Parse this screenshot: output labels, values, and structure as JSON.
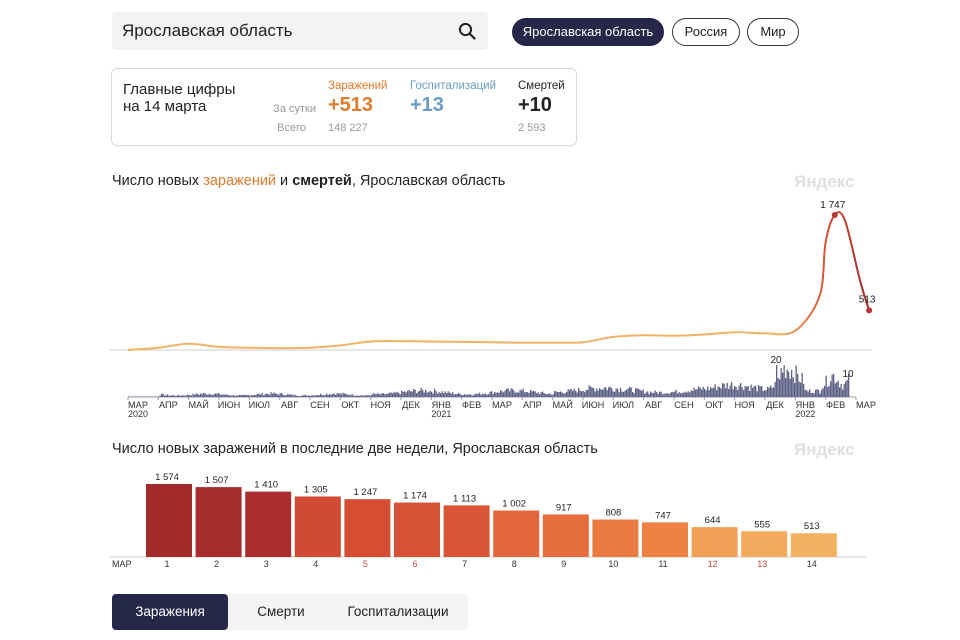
{
  "search": {
    "value": "Ярославская область"
  },
  "region_tabs": [
    "Ярославская область",
    "Россия",
    "Мир"
  ],
  "summary": {
    "title_line1": "Главные цифры",
    "title_line2": "на 14 марта",
    "row_daily": "За сутки",
    "row_total": "Всего",
    "columns": [
      {
        "label": "Заражений",
        "daily": "+513",
        "total": "148 227",
        "color": "#e07a2c"
      },
      {
        "label": "Госпитализаций",
        "daily": "+13",
        "total": "",
        "color": "#6a9bc3"
      },
      {
        "label": "Смертей",
        "daily": "+10",
        "total": "2 593",
        "color": "#222222"
      }
    ]
  },
  "chart1": {
    "title_part1": "Число новых ",
    "title_part2": "заражений",
    "title_part3": " и ",
    "title_part4": "смертей",
    "title_part5": ", Ярославская область",
    "watermark": "Яндекс",
    "months": [
      "МАР",
      "АПР",
      "МАЙ",
      "ИЮН",
      "ИЮЛ",
      "АВГ",
      "СЕН",
      "ОКТ",
      "НОЯ",
      "ДЕК",
      "ЯНВ",
      "ФЕВ",
      "МАР",
      "АПР",
      "МАЙ",
      "ИЮН",
      "ИЮЛ",
      "АВГ",
      "СЕН",
      "ОКТ",
      "НОЯ",
      "ДЕК",
      "ЯНВ",
      "ФЕВ",
      "МАР"
    ],
    "years": [
      {
        "label": "2020",
        "month_index": 0
      },
      {
        "label": "2021",
        "month_index": 10
      },
      {
        "label": "2022",
        "month_index": 22
      }
    ]
  },
  "chart2": {
    "title": "Число новых заражений в последние две недели, Ярославская область",
    "watermark": "Яндекс",
    "month_label": "МАР"
  },
  "bottom_tabs": [
    "Заражения",
    "Смерти",
    "Госпитализации"
  ],
  "chart_data": [
    {
      "type": "line",
      "series": [
        {
          "name": "Заражений",
          "color": "#f0b267",
          "points": [
            [
              "2020-03",
              0
            ],
            [
              "2020-04",
              30
            ],
            [
              "2020-05",
              80
            ],
            [
              "2020-06",
              40
            ],
            [
              "2020-07",
              30
            ],
            [
              "2020-08",
              25
            ],
            [
              "2020-09",
              30
            ],
            [
              "2020-10",
              60
            ],
            [
              "2020-11",
              110
            ],
            [
              "2020-12",
              115
            ],
            [
              "2021-01",
              110
            ],
            [
              "2021-02",
              105
            ],
            [
              "2021-03",
              100
            ],
            [
              "2021-04",
              95
            ],
            [
              "2021-05",
              95
            ],
            [
              "2021-06",
              100
            ],
            [
              "2021-07",
              170
            ],
            [
              "2021-08",
              190
            ],
            [
              "2021-09",
              185
            ],
            [
              "2021-10",
              200
            ],
            [
              "2021-11",
              230
            ],
            [
              "2021-12",
              215
            ],
            [
              "2022-01",
              250
            ],
            [
              "2022-01-25",
              700
            ],
            [
              "2022-02",
              1400
            ],
            [
              "2022-02-10",
              1747
            ],
            [
              "2022-02-20",
              1680
            ],
            [
              "2022-03-05",
              900
            ],
            [
              "2022-03-14",
              513
            ]
          ],
          "labels": [
            {
              "x": "2022-02-10",
              "text": "1 747"
            },
            {
              "x": "2022-03-14",
              "text": "513"
            }
          ]
        },
        {
          "name": "Смертей",
          "color": "#5b5f86",
          "labels": [
            {
              "x": "2022-01",
              "text": "20"
            },
            {
              "x": "2022-03-14",
              "text": "10"
            }
          ]
        }
      ]
    },
    {
      "type": "bar",
      "categories": [
        "1",
        "2",
        "3",
        "4",
        "5",
        "6",
        "7",
        "8",
        "9",
        "10",
        "11",
        "12",
        "13",
        "14"
      ],
      "values": [
        1574,
        1507,
        1410,
        1305,
        1247,
        1174,
        1113,
        1002,
        917,
        808,
        747,
        644,
        555,
        513
      ],
      "value_labels": [
        "1 574",
        "1 507",
        "1 410",
        "1 305",
        "1 247",
        "1 174",
        "1 113",
        "1 002",
        "917",
        "808",
        "747",
        "644",
        "555",
        "513"
      ],
      "weekend_indices": [
        4,
        5,
        11,
        12
      ],
      "colors": [
        "#a32a2b",
        "#a72c2c",
        "#aa2e2d",
        "#d14a33",
        "#d54e34",
        "#d65135",
        "#d95536",
        "#e3673c",
        "#e66e3e",
        "#e97a41",
        "#eb8244",
        "#f0a156",
        "#f2aa5c",
        "#f3b162"
      ]
    }
  ]
}
